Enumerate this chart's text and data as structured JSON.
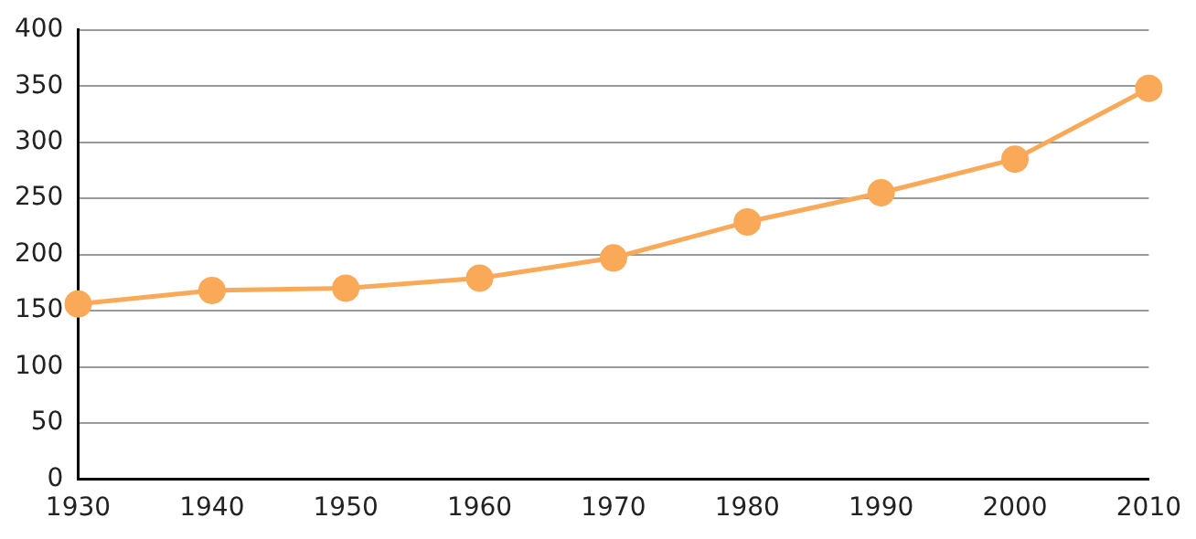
{
  "chart_data": {
    "type": "line",
    "categories": [
      "1930",
      "1940",
      "1950",
      "1960",
      "1970",
      "1980",
      "1990",
      "2000",
      "2010"
    ],
    "series": [
      {
        "color": "#f9a958",
        "values": [
          156,
          168,
          170,
          179,
          197,
          229,
          255,
          285,
          348
        ]
      }
    ],
    "ylim": [
      0,
      400
    ],
    "yticks": [
      0,
      50,
      100,
      150,
      200,
      250,
      300,
      350,
      400
    ],
    "grid": "y",
    "marker": "circle",
    "line_style": "solid",
    "legend": false
  }
}
